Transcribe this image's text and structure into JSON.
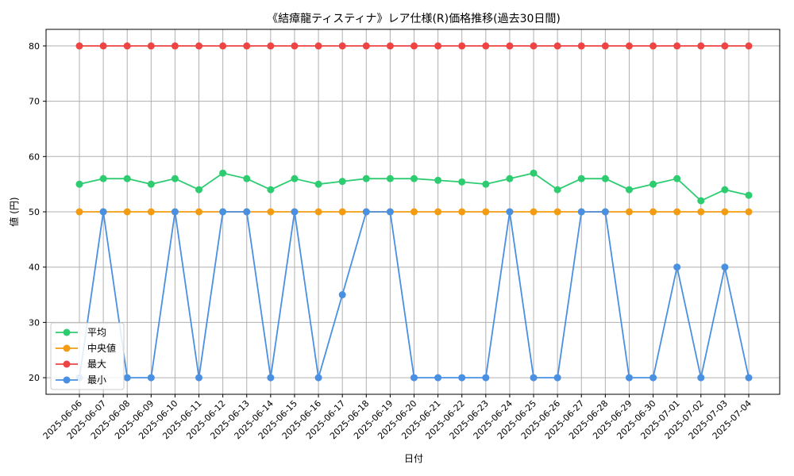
{
  "chart_data": {
    "type": "line",
    "title": "《結瘴龍ティスティナ》レア仕様(R)価格推移(過去30日間)",
    "xlabel": "日付",
    "ylabel": "値 (円)",
    "ylim": [
      17,
      83
    ],
    "yticks": [
      20,
      30,
      40,
      50,
      60,
      70,
      80
    ],
    "grid": true,
    "legend_position": "lower-left",
    "x": [
      "2025-06-06",
      "2025-06-07",
      "2025-06-08",
      "2025-06-09",
      "2025-06-10",
      "2025-06-11",
      "2025-06-12",
      "2025-06-13",
      "2025-06-14",
      "2025-06-15",
      "2025-06-16",
      "2025-06-17",
      "2025-06-18",
      "2025-06-19",
      "2025-06-20",
      "2025-06-21",
      "2025-06-22",
      "2025-06-23",
      "2025-06-24",
      "2025-06-25",
      "2025-06-26",
      "2025-06-27",
      "2025-06-28",
      "2025-06-29",
      "2025-06-30",
      "2025-07-01",
      "2025-07-02",
      "2025-07-03",
      "2025-07-04"
    ],
    "series": [
      {
        "name": "平均",
        "color": "#2ecc71",
        "values": [
          55,
          56,
          56,
          55,
          56,
          54,
          57,
          56,
          54,
          56,
          55,
          55.5,
          56,
          56,
          56,
          55.7,
          55.4,
          55,
          56,
          57,
          54,
          56,
          56,
          54,
          55,
          56,
          52,
          54,
          53
        ]
      },
      {
        "name": "中央値",
        "color": "#f39c12",
        "values": [
          50,
          50,
          50,
          50,
          50,
          50,
          50,
          50,
          50,
          50,
          50,
          50,
          50,
          50,
          50,
          50,
          50,
          50,
          50,
          50,
          50,
          50,
          50,
          50,
          50,
          50,
          50,
          50,
          50
        ]
      },
      {
        "name": "最大",
        "color": "#ef4444",
        "values": [
          80,
          80,
          80,
          80,
          80,
          80,
          80,
          80,
          80,
          80,
          80,
          80,
          80,
          80,
          80,
          80,
          80,
          80,
          80,
          80,
          80,
          80,
          80,
          80,
          80,
          80,
          80,
          80,
          80
        ]
      },
      {
        "name": "最小",
        "color": "#4a90e2",
        "values": [
          20,
          50,
          20,
          20,
          50,
          20,
          50,
          50,
          20,
          50,
          20,
          35,
          50,
          50,
          20,
          20,
          20,
          20,
          50,
          20,
          20,
          50,
          50,
          20,
          20,
          40,
          20,
          40,
          20
        ]
      }
    ]
  }
}
